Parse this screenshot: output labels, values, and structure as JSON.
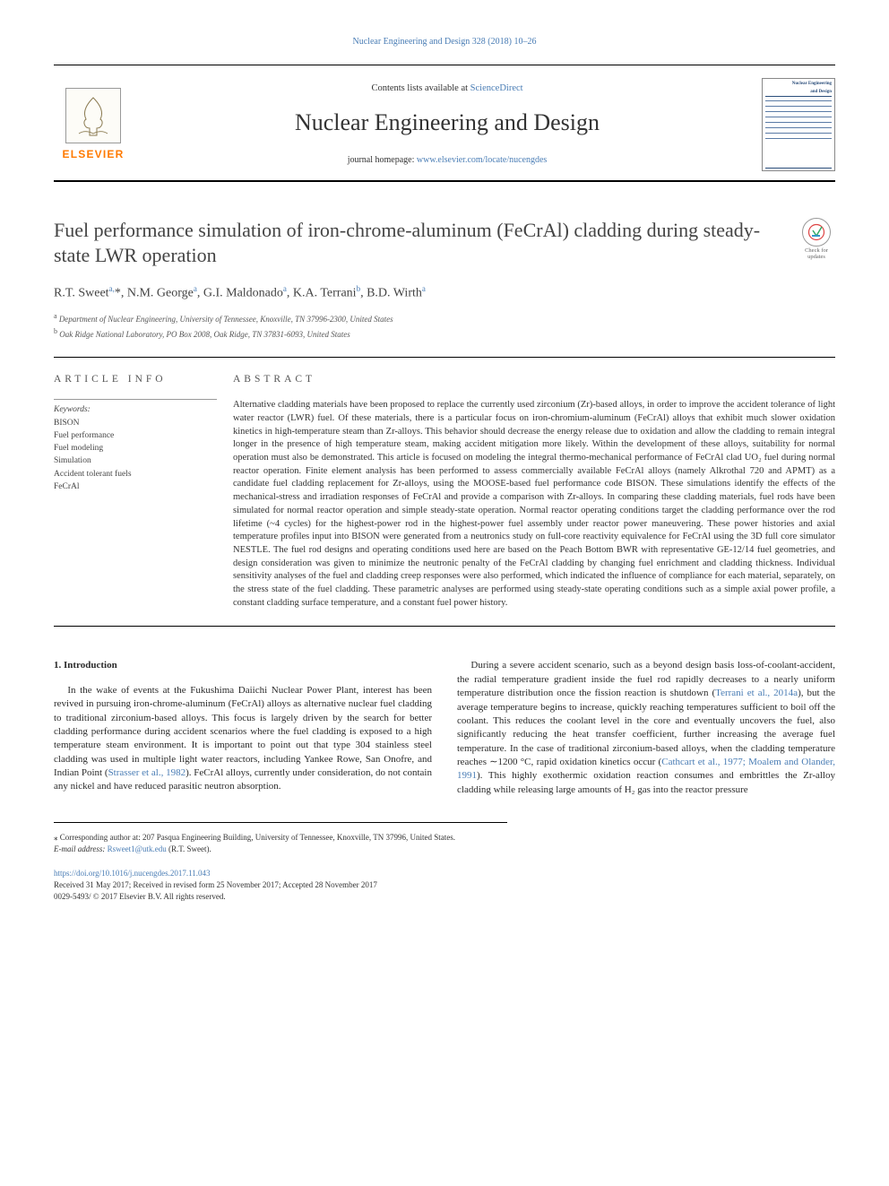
{
  "header": {
    "citation": "Nuclear Engineering and Design 328 (2018) 10–26",
    "contents_prefix": "Contents lists available at ",
    "contents_link": "ScienceDirect",
    "journal_name": "Nuclear Engineering and Design",
    "homepage_prefix": "journal homepage: ",
    "homepage_url": "www.elsevier.com/locate/nucengdes",
    "publisher_name": "ELSEVIER",
    "thumb_title1": "Nuclear Engineering",
    "thumb_title2": "and Design",
    "check_updates": "Check for updates"
  },
  "article": {
    "title": "Fuel performance simulation of iron-chrome-aluminum (FeCrAl) cladding during steady-state LWR operation",
    "authors_html": "R.T. Sweet<sup>a,</sup>*, N.M. George<sup>a</sup>, G.I. Maldonado<sup>a</sup>, K.A. Terrani<sup>b</sup>, B.D. Wirth<sup>a</sup>",
    "affiliations": {
      "a": "Department of Nuclear Engineering, University of Tennessee, Knoxville, TN 37996-2300, United States",
      "b": "Oak Ridge National Laboratory, PO Box 2008, Oak Ridge, TN 37831-6093, United States"
    }
  },
  "article_info": {
    "heading": "ARTICLE INFO",
    "keywords_label": "Keywords:",
    "keywords": [
      "BISON",
      "Fuel performance",
      "Fuel modeling",
      "Simulation",
      "Accident tolerant fuels",
      "FeCrAl"
    ]
  },
  "abstract": {
    "heading": "ABSTRACT",
    "body": "Alternative cladding materials have been proposed to replace the currently used zirconium (Zr)-based alloys, in order to improve the accident tolerance of light water reactor (LWR) fuel. Of these materials, there is a particular focus on iron-chromium-aluminum (FeCrAl) alloys that exhibit much slower oxidation kinetics in high-temperature steam than Zr-alloys. This behavior should decrease the energy release due to oxidation and allow the cladding to remain integral longer in the presence of high temperature steam, making accident mitigation more likely. Within the development of these alloys, suitability for normal operation must also be demonstrated. This article is focused on modeling the integral thermo-mechanical performance of FeCrAl clad UO₂ fuel during normal reactor operation. Finite element analysis has been performed to assess commercially available FeCrAl alloys (namely Alkrothal 720 and APMT) as a candidate fuel cladding replacement for Zr-alloys, using the MOOSE-based fuel performance code BISON. These simulations identify the effects of the mechanical-stress and irradiation responses of FeCrAl and provide a comparison with Zr-alloys. In comparing these cladding materials, fuel rods have been simulated for normal reactor operation and simple steady-state operation. Normal reactor operating conditions target the cladding performance over the rod lifetime (~4 cycles) for the highest-power rod in the highest-power fuel assembly under reactor power maneuvering. These power histories and axial temperature profiles input into BISON were generated from a neutronics study on full-core reactivity equivalence for FeCrAl using the 3D full core simulator NESTLE. The fuel rod designs and operating conditions used here are based on the Peach Bottom BWR with representative GE-12/14 fuel geometries, and design consideration was given to minimize the neutronic penalty of the FeCrAl cladding by changing fuel enrichment and cladding thickness. Individual sensitivity analyses of the fuel and cladding creep responses were also performed, which indicated the influence of compliance for each material, separately, on the stress state of the fuel cladding. These parametric analyses are performed using steady-state operating conditions such as a simple axial power profile, a constant cladding surface temperature, and a constant fuel power history."
  },
  "body": {
    "intro_heading": "1. Introduction",
    "p1_pre": "In the wake of events at the Fukushima Daiichi Nuclear Power Plant, interest has been revived in pursuing iron-chrome-aluminum (FeCrAl) alloys as alternative nuclear fuel cladding to traditional zirconium-based alloys. This focus is largely driven by the search for better cladding performance during accident scenarios where the fuel cladding is exposed to a high temperature steam environment. It is important to point out that type 304 stainless steel cladding was used in multiple light water reactors, including Yankee Rowe, San Onofre, and Indian Point (",
    "p1_ref": "Strasser et al., 1982",
    "p1_post": "). FeCrAl alloys, currently under consideration, do not contain any nickel and have reduced parasitic neutron absorption.",
    "p2_pre": "During a severe accident scenario, such as a beyond design basis loss-of-coolant-accident, the radial temperature gradient inside the fuel rod rapidly decreases to a nearly uniform temperature distribution once the fission reaction is shutdown (",
    "p2_ref1": "Terrani et al., 2014a",
    "p2_mid": "), but the average temperature begins to increase, quickly reaching temperatures sufficient to boil off the coolant. This reduces the coolant level in the core and eventually uncovers the fuel, also significantly reducing the heat transfer coefficient, further increasing the average fuel temperature. In the case of traditional zirconium-based alloys, when the cladding temperature reaches ∼1200 °C, rapid oxidation kinetics occur (",
    "p2_ref2": "Cathcart et al., 1977; Moalem and Olander, 1991",
    "p2_post": "). This highly exothermic oxidation reaction consumes and embrittles the Zr-alloy cladding while releasing large amounts of H₂ gas into the reactor pressure"
  },
  "footnotes": {
    "corresp": "⁎ Corresponding author at: 207 Pasqua Engineering Building, University of Tennessee, Knoxville, TN 37996, United States.",
    "email_label": "E-mail address: ",
    "email": "Rsweet1@utk.edu",
    "email_after": " (R.T. Sweet)."
  },
  "pub": {
    "doi": "https://doi.org/10.1016/j.nucengdes.2017.11.043",
    "received": "Received 31 May 2017; Received in revised form 25 November 2017; Accepted 28 November 2017",
    "issn": "0029-5493/ © 2017 Elsevier B.V. All rights reserved."
  },
  "colors": {
    "link": "#4a7db5",
    "publisher": "#ff7a00",
    "text": "#2b2b2b",
    "rule": "#000000"
  }
}
